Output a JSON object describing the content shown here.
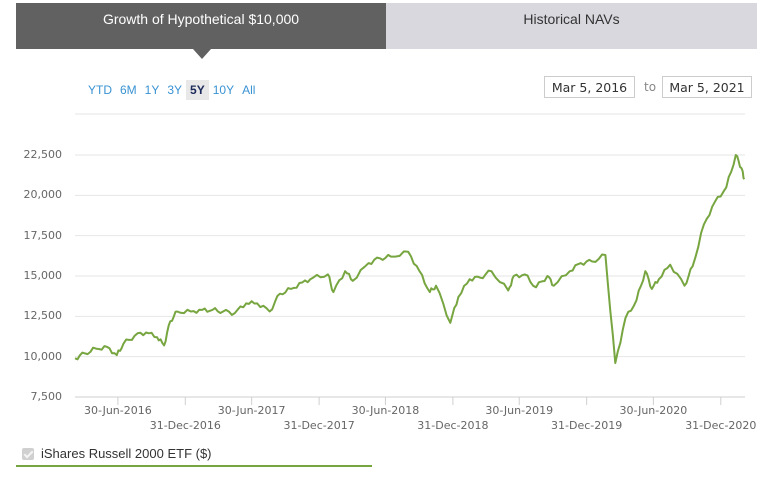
{
  "tabs": [
    {
      "label": "Growth of Hypothetical $10,000",
      "active": true
    },
    {
      "label": "Historical NAVs",
      "active": false
    }
  ],
  "range_buttons": [
    {
      "label": "YTD",
      "selected": false
    },
    {
      "label": "6M",
      "selected": false
    },
    {
      "label": "1Y",
      "selected": false
    },
    {
      "label": "3Y",
      "selected": false
    },
    {
      "label": "5Y",
      "selected": true
    },
    {
      "label": "10Y",
      "selected": false
    },
    {
      "label": "All",
      "selected": false
    }
  ],
  "date_range": {
    "from": "Mar 5, 2016",
    "to_label": "to",
    "to": "Mar 5, 2021"
  },
  "legend": {
    "label": "iShares Russell 2000 ETF ($)",
    "color": "#77a540"
  },
  "colors": {
    "line": "#77a540",
    "tab_active": "#616161",
    "tab_inactive": "#d9d8de",
    "range_link": "#3a93d3"
  },
  "chart_data": {
    "type": "line",
    "title": "Growth of Hypothetical $10,000",
    "xlabel": "",
    "ylabel": "",
    "ylim": [
      7500,
      22500
    ],
    "yticks": [
      7500,
      10000,
      12500,
      15000,
      17500,
      20000,
      22500
    ],
    "ytick_labels": [
      "7,500",
      "10,000",
      "12,500",
      "15,000",
      "17,500",
      "20,000",
      "22,500"
    ],
    "xtick_labels": [
      "30-Jun-2016",
      "31-Dec-2016",
      "30-Jun-2017",
      "31-Dec-2017",
      "30-Jun-2018",
      "31-Dec-2018",
      "30-Jun-2019",
      "31-Dec-2019",
      "30-Jun-2020",
      "31-Dec-2020"
    ],
    "grid": true,
    "legend_position": "bottom-left",
    "series": [
      {
        "name": "iShares Russell 2000 ETF ($)",
        "x": [
          "2016-03-05",
          "2016-04-01",
          "2016-05-01",
          "2016-06-01",
          "2016-06-27",
          "2016-07-15",
          "2016-08-15",
          "2016-09-15",
          "2016-10-15",
          "2016-11-03",
          "2016-11-20",
          "2016-12-09",
          "2017-01-15",
          "2017-02-15",
          "2017-03-15",
          "2017-04-13",
          "2017-05-15",
          "2017-06-15",
          "2017-07-15",
          "2017-08-18",
          "2017-09-15",
          "2017-10-15",
          "2017-11-15",
          "2017-12-15",
          "2018-01-24",
          "2018-02-08",
          "2018-03-12",
          "2018-04-02",
          "2018-05-15",
          "2018-06-15",
          "2018-07-15",
          "2018-08-31",
          "2018-10-01",
          "2018-10-29",
          "2018-11-15",
          "2018-12-24",
          "2019-01-15",
          "2019-02-15",
          "2019-03-15",
          "2019-04-15",
          "2019-05-31",
          "2019-06-15",
          "2019-07-15",
          "2019-08-15",
          "2019-09-15",
          "2019-10-02",
          "2019-11-15",
          "2019-12-15",
          "2020-01-15",
          "2020-02-20",
          "2020-03-18",
          "2020-04-15",
          "2020-05-15",
          "2020-06-08",
          "2020-06-26",
          "2020-07-15",
          "2020-08-15",
          "2020-09-23",
          "2020-10-15",
          "2020-11-15",
          "2020-12-15",
          "2021-01-15",
          "2021-02-10",
          "2021-02-25",
          "2021-03-05"
        ],
        "values": [
          9900,
          10200,
          10500,
          10600,
          10100,
          10800,
          11300,
          11500,
          11200,
          10700,
          12200,
          12800,
          12800,
          12900,
          12900,
          12800,
          12700,
          13300,
          13300,
          12800,
          13900,
          14200,
          14600,
          14900,
          15100,
          14000,
          15300,
          14700,
          15800,
          16100,
          16200,
          16500,
          15300,
          14000,
          14400,
          12100,
          13700,
          14800,
          14900,
          15300,
          14100,
          15000,
          15100,
          14300,
          15000,
          14400,
          15300,
          15800,
          15900,
          16300,
          9600,
          12400,
          13500,
          15300,
          14200,
          14800,
          15700,
          14400,
          15600,
          18200,
          19600,
          20500,
          22500,
          21700,
          21000
        ]
      }
    ]
  }
}
